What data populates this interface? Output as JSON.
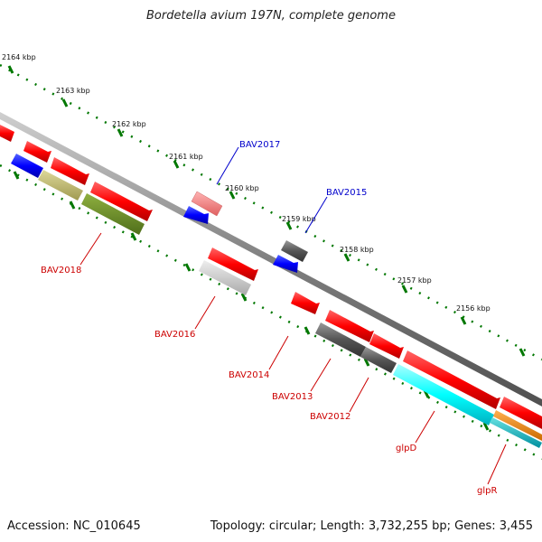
{
  "title": "Bordetella avium 197N, complete genome",
  "ruler_ticks": [
    "2164 kbp",
    "2163 kbp",
    "2162 kbp",
    "2161 kbp",
    "2160 kbp",
    "2159 kbp",
    "2158 kbp",
    "2157 kbp",
    "2156 kbp"
  ],
  "gene_labels": {
    "bav2017": "BAV2017",
    "bav2015": "BAV2015",
    "bav2018": "BAV2018",
    "bav2016": "BAV2016",
    "bav2014": "BAV2014",
    "bav2013": "BAV2013",
    "bav2012": "BAV2012",
    "glpd": "glpD",
    "glpr": "glpR"
  },
  "footer": {
    "accession": "Accession: NC_010645",
    "stats": "Topology: circular; Length: 3,732,255 bp; Genes: 3,455"
  },
  "colors": {
    "forward_cds": "#ff0000",
    "reverse_cds": "#0000ff",
    "backbone": "#808080",
    "ruler": "#007700",
    "label_forward": "#cc0000",
    "label_reverse": "#0000cc",
    "cog_cyan": "#00ffff",
    "cog_olive": "#6b8e23",
    "cog_khaki": "#bdb76b",
    "cog_orange": "#ff8c00",
    "cog_gray": "#555555"
  }
}
